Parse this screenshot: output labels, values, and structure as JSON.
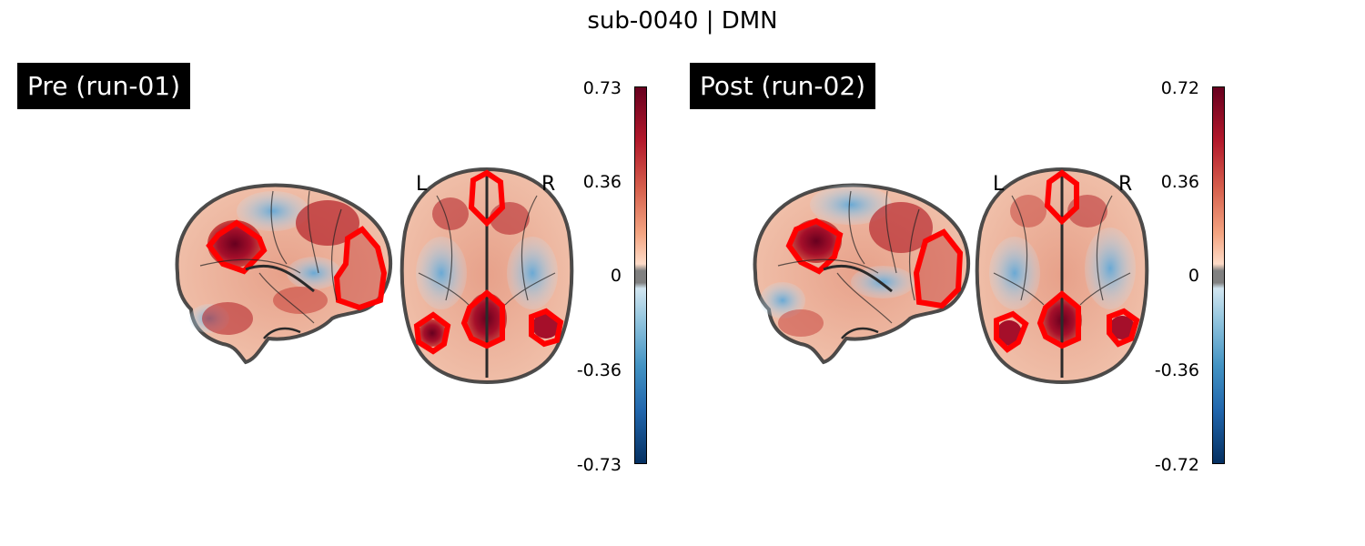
{
  "figure": {
    "title": "sub-0040 | DMN"
  },
  "panels": [
    {
      "title": "Pre (run-01)",
      "orientation": {
        "left": "L",
        "right": "R"
      },
      "colorbar": {
        "ticks": [
          "0.73",
          "0.36",
          "0",
          "-0.36",
          "-0.73"
        ],
        "vmin": -0.73,
        "vmax": 0.73
      }
    },
    {
      "title": "Post (run-02)",
      "orientation": {
        "left": "L",
        "right": "R"
      },
      "colorbar": {
        "ticks": [
          "0.72",
          "0.36",
          "0",
          "-0.36",
          "-0.72"
        ],
        "vmin": -0.72,
        "vmax": 0.72
      }
    }
  ],
  "colors": {
    "roi_outline": "#ff0000",
    "brain_outline": "#3a3a3a",
    "colormap": "RdBu_r"
  }
}
